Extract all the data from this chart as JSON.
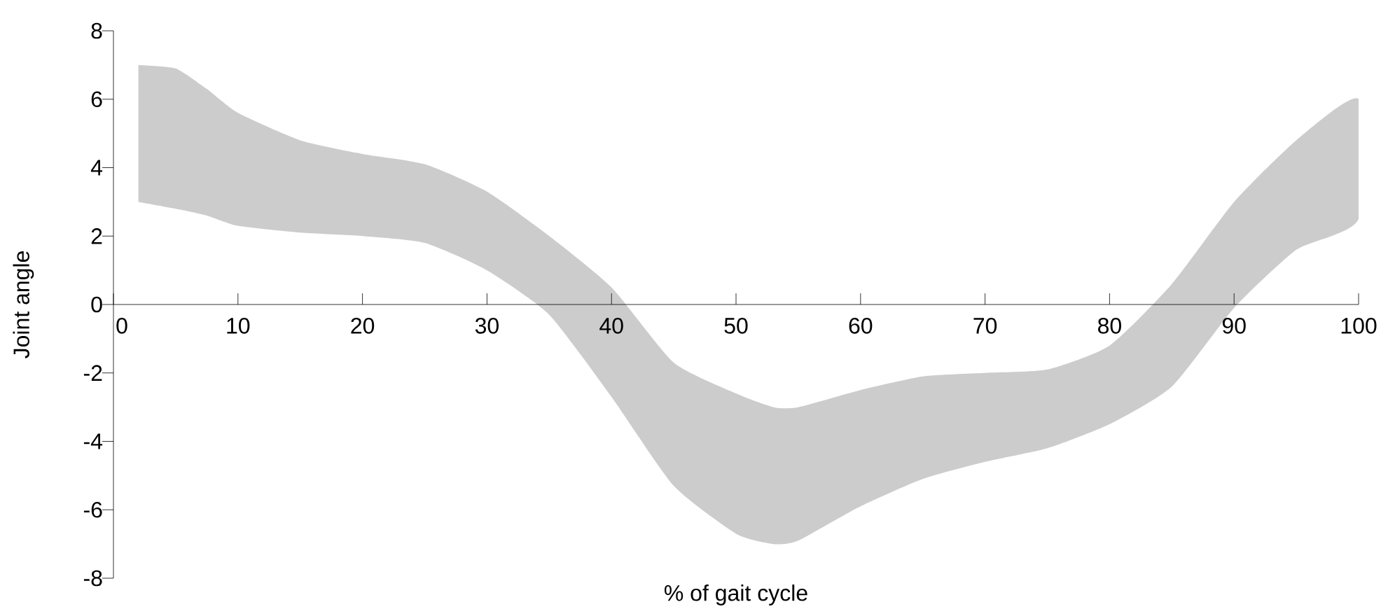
{
  "chart_data": {
    "type": "area",
    "xlabel": "% of gait cycle",
    "ylabel": "Joint angle",
    "xlim": [
      0,
      100
    ],
    "ylim": [
      -8,
      8
    ],
    "xticks": [
      0,
      10,
      20,
      30,
      40,
      50,
      60,
      70,
      80,
      90,
      100
    ],
    "yticks": [
      -8,
      -6,
      -4,
      -2,
      0,
      2,
      4,
      6,
      8
    ],
    "series": [
      {
        "color": "#cccccc",
        "values": [
          null,
          null,
          null,
          null,
          null,
          null,
          null,
          null,
          null,
          null,
          null,
          null,
          null,
          null,
          null,
          null,
          null,
          null,
          null,
          null,
          null,
          null,
          null
        ],
        "x": [
          2,
          5,
          7.5,
          10,
          15,
          20,
          25,
          30,
          35,
          40,
          45,
          50,
          53,
          55,
          60,
          65,
          70,
          75,
          80,
          85,
          90,
          95,
          100
        ],
        "upper": [
          7.0,
          6.9,
          6.3,
          5.6,
          4.8,
          4.4,
          4.1,
          3.3,
          2.0,
          0.5,
          -1.7,
          -2.6,
          -3.0,
          -3.0,
          -2.5,
          -2.1,
          -2.0,
          -1.9,
          -1.2,
          0.6,
          3.0,
          4.8,
          6.0
        ],
        "lower": [
          3.0,
          2.8,
          2.6,
          2.3,
          2.1,
          2.0,
          1.8,
          1.0,
          -0.3,
          -2.7,
          -5.3,
          -6.7,
          -7.0,
          -6.9,
          -5.9,
          -5.1,
          -4.6,
          -4.2,
          -3.5,
          -2.4,
          -0.1,
          1.6,
          2.5
        ]
      }
    ]
  }
}
